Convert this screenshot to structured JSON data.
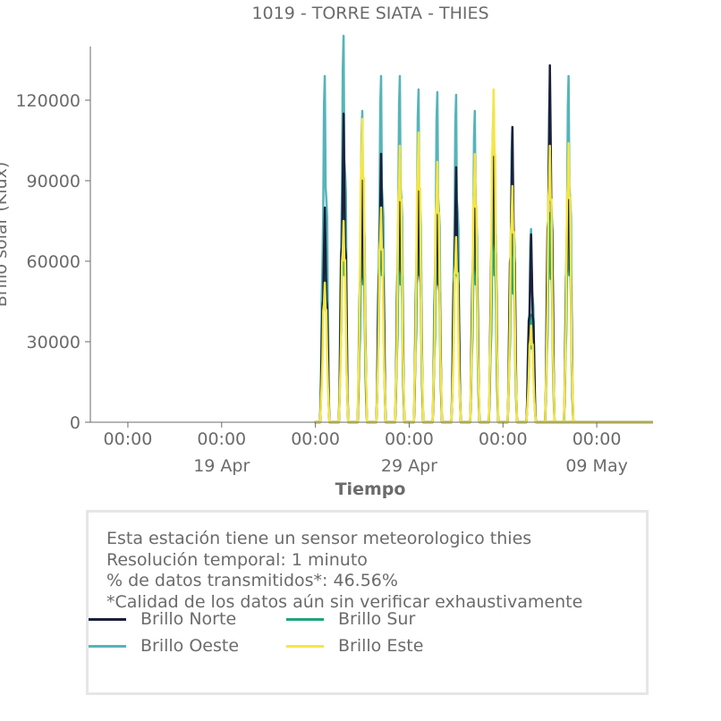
{
  "chart_data": {
    "type": "line",
    "title": "1019 - TORRE SIATA - THIES",
    "xlabel": "Tiempo",
    "ylabel": "Brillo solar (Klux)",
    "ylim": [
      0,
      140000
    ],
    "yticks": [
      0,
      30000,
      60000,
      90000,
      120000
    ],
    "ytick_labels": [
      "0",
      "30000",
      "60000",
      "90000",
      "120000"
    ],
    "x_range_days": [
      "2025-04-12",
      "2025-05-12"
    ],
    "x_ticks": [
      {
        "pos": "2025-04-14",
        "hour": "00:00",
        "date": ""
      },
      {
        "pos": "2025-04-19",
        "hour": "00:00",
        "date": "19 Apr"
      },
      {
        "pos": "2025-04-24",
        "hour": "00:00",
        "date": ""
      },
      {
        "pos": "2025-04-29",
        "hour": "00:00",
        "date": "29 Apr"
      },
      {
        "pos": "2025-05-04",
        "hour": "00:00",
        "date": ""
      },
      {
        "pos": "2025-05-09",
        "hour": "00:00",
        "date": "09 May"
      }
    ],
    "grid": false,
    "data_start": "2025-04-24",
    "data_end": "2025-05-06",
    "series": [
      {
        "name": "Brillo Norte",
        "color": "#1b1f3b",
        "daily_peaks": [
          80000,
          115000,
          95000,
          100000,
          100000,
          95000,
          90000,
          95000,
          100000,
          117000,
          110000,
          70000,
          133000,
          100000
        ]
      },
      {
        "name": "Brillo Oeste",
        "color": "#56b4b9",
        "daily_peaks": [
          129000,
          144000,
          116000,
          129000,
          129000,
          124000,
          123000,
          122000,
          116000,
          117000,
          110000,
          72000,
          125000,
          129000
        ]
      },
      {
        "name": "Brillo Sur",
        "color": "#21a37e",
        "daily_peaks": [
          70000,
          80000,
          75000,
          80000,
          75000,
          80000,
          75000,
          80000,
          75000,
          80000,
          70000,
          40000,
          78000,
          80000
        ]
      },
      {
        "name": "Brillo Este",
        "color": "#f5e642",
        "daily_peaks": [
          52000,
          75000,
          113000,
          80000,
          103000,
          108000,
          97000,
          69000,
          100000,
          124000,
          88000,
          36000,
          103000,
          104000
        ]
      }
    ]
  },
  "info": {
    "line1": "Esta estación tiene un sensor meteorologico thies",
    "line2": "Resolución temporal: 1 minuto",
    "line3": "% de datos transmitidos*: 46.56%",
    "line4": "*Calidad de los datos aún sin verificar exhaustivamente"
  }
}
